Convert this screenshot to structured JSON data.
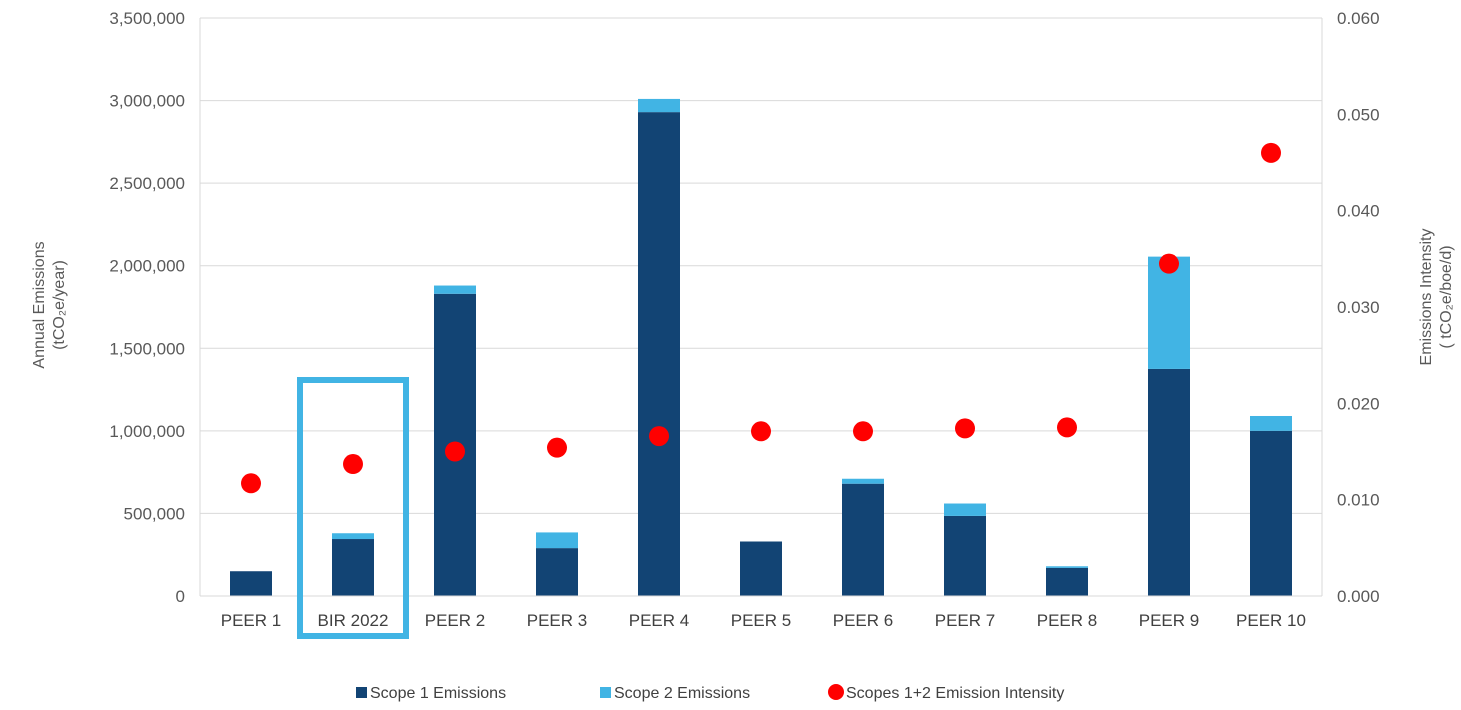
{
  "chart_data": {
    "type": "bar",
    "subtype": "stacked-bar with scatter overlay (dual axis)",
    "categories": [
      "PEER 1",
      "BIR 2022",
      "PEER 2",
      "PEER 3",
      "PEER 4",
      "PEER 5",
      "PEER 6",
      "PEER 7",
      "PEER 8",
      "PEER 9",
      "PEER 10"
    ],
    "series": [
      {
        "name": "Scope 1 Emissions",
        "type": "bar",
        "axis": "left",
        "color": "#124474",
        "values": [
          150000,
          345000,
          1830000,
          290000,
          2930000,
          330000,
          680000,
          485000,
          170000,
          1375000,
          1000000
        ]
      },
      {
        "name": "Scope 2 Emissions",
        "type": "bar",
        "axis": "left",
        "color": "#41b4e4",
        "values": [
          0,
          35000,
          50000,
          95000,
          80000,
          0,
          30000,
          75000,
          10000,
          680000,
          90000
        ]
      },
      {
        "name": "Scopes 1+2 Emission Intensity",
        "type": "scatter",
        "axis": "right",
        "color": "#ff0000",
        "values": [
          0.0117,
          0.0137,
          0.015,
          0.0154,
          0.0166,
          0.0171,
          0.0171,
          0.0174,
          0.0175,
          0.0345,
          0.046
        ]
      }
    ],
    "ylabel": "Annual Emissions",
    "ylabel_unit": "(tCO₂e/year)",
    "y2label": "Emissions Intensity",
    "y2label_unit": "( tCO₂e/boe/d)",
    "ylim": [
      0,
      3500000
    ],
    "yticks": [
      "0",
      "500,000",
      "1,000,000",
      "1,500,000",
      "2,000,000",
      "2,500,000",
      "3,000,000",
      "3,500,000"
    ],
    "y2lim": [
      0,
      0.06
    ],
    "y2ticks": [
      "0.000",
      "0.010",
      "0.020",
      "0.030",
      "0.040",
      "0.050",
      "0.060"
    ],
    "grid": true,
    "legend_position": "bottom",
    "highlight": {
      "category": "BIR 2022",
      "color": "#41b4e4"
    }
  }
}
